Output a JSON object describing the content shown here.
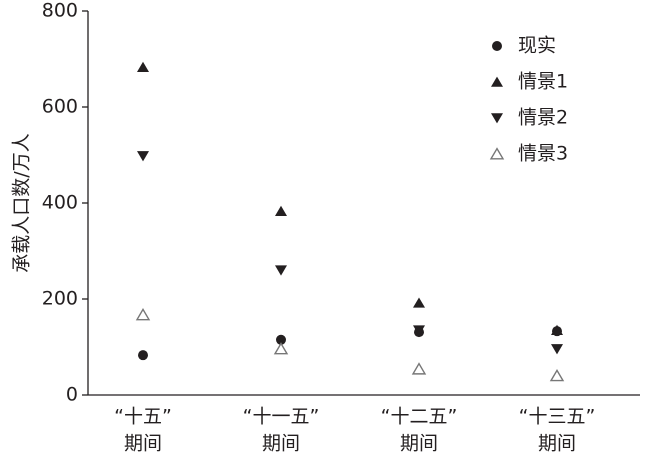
{
  "chart_data": {
    "type": "scatter",
    "y_label": "承载人口数/万人",
    "categories": [
      [
        "“十五”",
        "期间"
      ],
      [
        "“十一五”",
        "期间"
      ],
      [
        "“十二五”",
        "期间"
      ],
      [
        "“十三五”",
        "期间"
      ]
    ],
    "series": [
      {
        "name": "现实",
        "marker": "circle",
        "color": "#231f20",
        "values": [
          83,
          115,
          131,
          133
        ]
      },
      {
        "name": "情景1",
        "marker": "triangle-up",
        "color": "#231f20",
        "values": [
          683,
          383,
          192,
          135
        ]
      },
      {
        "name": "情景2",
        "marker": "triangle-down",
        "color": "#231f20",
        "values": [
          498,
          260,
          135,
          96
        ]
      },
      {
        "name": "情景3",
        "marker": "triangle-up-open",
        "color": "#777777",
        "values": [
          167,
          96,
          54,
          40
        ]
      }
    ],
    "ylim": [
      0,
      800
    ],
    "yticks": [
      0,
      200,
      400,
      600,
      800
    ],
    "legend": "upper-right"
  }
}
